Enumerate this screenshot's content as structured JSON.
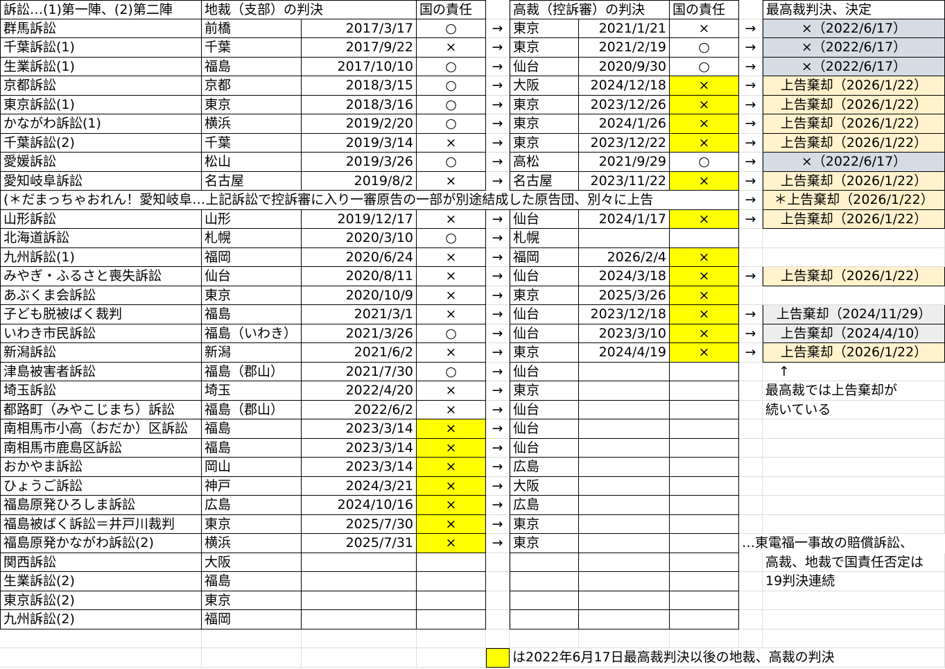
{
  "colors": {
    "yellow": "#ffff00",
    "supreme_gray": "#d6dce4",
    "supreme_peach": "#fff2cc",
    "supreme_lightgray": "#ededed"
  },
  "arrow": "→",
  "header": {
    "case": "訴訟…(1)第一陣、(2)第二陣",
    "district": "地裁（支部）の判決",
    "district_resp": "国の責任",
    "high": "高裁（控訴審）の判決",
    "high_resp": "国の責任",
    "supreme": "最高裁判決、決定"
  },
  "rows": [
    {
      "name": "群馬訴訟",
      "court": "前橋",
      "date": "2017/3/17",
      "resp": "○",
      "hcourt": "東京",
      "hdate": "2021/1/21",
      "hresp": "×",
      "supreme": "×（2022/6/17）",
      "sstyle": "gray"
    },
    {
      "name": "千葉訴訟(1)",
      "court": "千葉",
      "date": "2017/9/22",
      "resp": "×",
      "hcourt": "東京",
      "hdate": "2021/2/19",
      "hresp": "○",
      "supreme": "×（2022/6/17）",
      "sstyle": "gray"
    },
    {
      "name": "生業訴訟(1)",
      "court": "福島",
      "date": "2017/10/10",
      "resp": "○",
      "hcourt": "仙台",
      "hdate": "2020/9/30",
      "hresp": "○",
      "supreme": "×（2022/6/17）",
      "sstyle": "gray"
    },
    {
      "name": "京都訴訟",
      "court": "京都",
      "date": "2018/3/15",
      "resp": "○",
      "hcourt": "大阪",
      "hdate": "2024/12/18",
      "hresp": "×",
      "hy": true,
      "supreme": "上告棄却（2026/1/22）",
      "sstyle": "peach"
    },
    {
      "name": "東京訴訟(1)",
      "court": "東京",
      "date": "2018/3/16",
      "resp": "○",
      "hcourt": "東京",
      "hdate": "2023/12/26",
      "hresp": "×",
      "hy": true,
      "supreme": "上告棄却（2026/1/22）",
      "sstyle": "peach"
    },
    {
      "name": "かながわ訴訟(1)",
      "court": "横浜",
      "date": "2019/2/20",
      "resp": "○",
      "hcourt": "東京",
      "hdate": "2024/1/26",
      "hresp": "×",
      "hy": true,
      "supreme": "上告棄却（2026/1/22）",
      "sstyle": "peach"
    },
    {
      "name": "千葉訴訟(2)",
      "court": "千葉",
      "date": "2019/3/14",
      "resp": "×",
      "hcourt": "東京",
      "hdate": "2023/12/22",
      "hresp": "×",
      "hy": true,
      "supreme": "上告棄却（2026/1/22）",
      "sstyle": "peach"
    },
    {
      "name": "愛媛訴訟",
      "court": "松山",
      "date": "2019/3/26",
      "resp": "○",
      "hcourt": "高松",
      "hdate": "2021/9/29",
      "hresp": "○",
      "supreme": "×（2022/6/17）",
      "sstyle": "gray"
    },
    {
      "name": "愛知岐阜訴訟",
      "court": "名古屋",
      "date": "2019/8/2",
      "resp": "×",
      "hcourt": "名古屋",
      "hdate": "2023/11/22",
      "hresp": "×",
      "hy": true,
      "supreme": "上告棄却（2026/1/22）",
      "sstyle": "peach"
    },
    {
      "span_note": "(＊だまっちゃおれん！愛知岐阜…上記訴訟で控訴審に入り一審原告の一部が別途結成した原告団、別々に上告",
      "supreme": "＊上告棄却（2026/1/22）",
      "sstyle": "peach"
    },
    {
      "name": "山形訴訟",
      "court": "山形",
      "date": "2019/12/17",
      "resp": "×",
      "hcourt": "仙台",
      "hdate": "2024/1/17",
      "hresp": "×",
      "hy": true,
      "supreme": "上告棄却（2026/1/22）",
      "sstyle": "peach"
    },
    {
      "name": "北海道訴訟",
      "court": "札幌",
      "date": "2020/3/10",
      "resp": "○",
      "hcourt": "札幌"
    },
    {
      "name": "九州訴訟(1)",
      "court": "福岡",
      "date": "2020/6/24",
      "resp": "×",
      "hcourt": "福岡",
      "hdate": "2026/2/4",
      "hresp": "×",
      "hy": true
    },
    {
      "name": "みやぎ・ふるさと喪失訴訟",
      "court": "仙台",
      "date": "2020/8/11",
      "resp": "×",
      "hcourt": "仙台",
      "hdate": "2024/3/18",
      "hresp": "×",
      "hy": true,
      "supreme": "上告棄却（2026/1/22）",
      "sstyle": "peach"
    },
    {
      "name": "あぶくま会訴訟",
      "court": "東京",
      "date": "2020/10/9",
      "resp": "×",
      "hcourt": "東京",
      "hdate": "2025/3/26",
      "hresp": "×",
      "hy": true
    },
    {
      "name": "子ども脱被ばく裁判",
      "court": "福島",
      "date": "2021/3/1",
      "resp": "×",
      "hcourt": "仙台",
      "hdate": "2023/12/18",
      "hresp": "×",
      "hy": true,
      "supreme": "上告棄却（2024/11/29）",
      "sstyle": "lgray"
    },
    {
      "name": "いわき市民訴訟",
      "court": "福島（いわき）",
      "date": "2021/3/26",
      "resp": "○",
      "hcourt": "仙台",
      "hdate": "2023/3/10",
      "hresp": "×",
      "hy": true,
      "supreme": "上告棄却（2024/4/10）",
      "sstyle": "lgray"
    },
    {
      "name": "新潟訴訟",
      "court": "新潟",
      "date": "2021/6/2",
      "resp": "×",
      "hcourt": "東京",
      "hdate": "2024/4/19",
      "hresp": "×",
      "hy": true,
      "supreme": "上告棄却（2026/1/22）",
      "sstyle": "peach"
    },
    {
      "name": "津島被害者訴訟",
      "court": "福島（郡山）",
      "date": "2021/7/30",
      "resp": "○",
      "hcourt": "仙台",
      "side_note": "　↑"
    },
    {
      "name": "埼玉訴訟",
      "court": "埼玉",
      "date": "2022/4/20",
      "resp": "×",
      "hcourt": "東京",
      "side_note": "最高裁では上告棄却が"
    },
    {
      "name": "都路町（みやこじまち）訴訟",
      "court": "福島（郡山）",
      "date": "2022/6/2",
      "resp": "×",
      "hcourt": "仙台",
      "side_note": "続いている"
    },
    {
      "name": "南相馬市小高（おだか）区訴訟",
      "court": "福島",
      "date": "2023/3/14",
      "resp": "×",
      "ry": true,
      "hcourt": "仙台"
    },
    {
      "name": "南相馬市鹿島区訴訟",
      "court": "福島",
      "date": "2023/3/14",
      "resp": "×",
      "ry": true,
      "hcourt": "仙台"
    },
    {
      "name": "おかやま訴訟",
      "court": "岡山",
      "date": "2023/3/14",
      "resp": "×",
      "ry": true,
      "hcourt": "広島"
    },
    {
      "name": "ひょうご訴訟",
      "court": "神戸",
      "date": "2024/3/21",
      "resp": "×",
      "ry": true,
      "hcourt": "大阪"
    },
    {
      "name": "福島原発ひろしま訴訟",
      "court": "広島",
      "date": "2024/10/16",
      "resp": "×",
      "ry": true,
      "hcourt": "広島"
    },
    {
      "name": "福島被ばく訴訟＝井戸川裁判",
      "court": "東京",
      "date": "2025/7/30",
      "resp": "×",
      "ry": true,
      "hcourt": "東京"
    },
    {
      "name": "福島原発かながわ訴訟(2)",
      "court": "横浜",
      "date": "2025/7/31",
      "resp": "×",
      "ry": true,
      "hcourt": "東京",
      "wide_note": "…東電福一事故の賠償訴訟、"
    },
    {
      "name": "関西訴訟",
      "court": "大阪",
      "side_note": "高裁、地裁で国責任否定は"
    },
    {
      "name": "生業訴訟(2)",
      "court": "福島",
      "side_note": "19判決連続"
    },
    {
      "name": "東京訴訟(2)",
      "court": "東京"
    },
    {
      "name": "九州訴訟(2)",
      "court": "福岡"
    }
  ],
  "legend": {
    "text": "は2022年6月17日最高裁判決以後の地裁、高裁の判決"
  }
}
